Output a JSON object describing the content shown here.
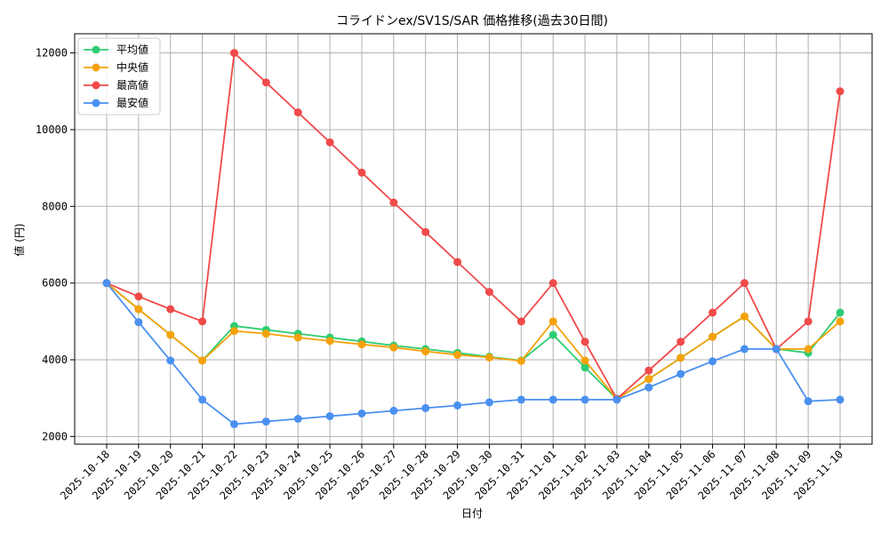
{
  "chart_data": {
    "type": "line",
    "title": "コライドンex/SV1S/SAR 価格推移(過去30日間)",
    "xlabel": "日付",
    "ylabel": "値 (円)",
    "ylim": [
      1800,
      12500
    ],
    "yticks": [
      2000,
      4000,
      6000,
      8000,
      10000,
      12000
    ],
    "grid": true,
    "legend_position": "top-left",
    "categories": [
      "2025-10-18",
      "2025-10-19",
      "2025-10-20",
      "2025-10-21",
      "2025-10-22",
      "2025-10-23",
      "2025-10-24",
      "2025-10-25",
      "2025-10-26",
      "2025-10-27",
      "2025-10-28",
      "2025-10-29",
      "2025-10-30",
      "2025-10-31",
      "2025-11-01",
      "2025-11-02",
      "2025-11-03",
      "2025-11-04",
      "2025-11-05",
      "2025-11-06",
      "2025-11-07",
      "2025-11-08",
      "2025-11-09",
      "2025-11-10"
    ],
    "series": [
      {
        "name": "平均値",
        "color": "#2ecc71",
        "values": [
          6000,
          5320,
          4650,
          3980,
          4880,
          4780,
          4680,
          4580,
          4480,
          4370,
          4280,
          4180,
          4080,
          3980,
          4650,
          3800,
          2980,
          3500,
          4050,
          4600,
          5130,
          4280,
          4180,
          5230
        ]
      },
      {
        "name": "中央値",
        "color": "#f5a20a",
        "values": [
          6000,
          5320,
          4650,
          3980,
          4750,
          4680,
          4580,
          4490,
          4400,
          4320,
          4220,
          4130,
          4060,
          3970,
          5000,
          3980,
          2980,
          3500,
          4050,
          4600,
          5130,
          4280,
          4280,
          5000
        ]
      },
      {
        "name": "最高値",
        "color": "#f04a4a",
        "values": [
          6000,
          5650,
          5320,
          5000,
          12000,
          11230,
          10450,
          9670,
          8880,
          8100,
          7330,
          6550,
          5770,
          5000,
          6000,
          4470,
          2980,
          3720,
          4470,
          5230,
          6000,
          4280,
          5000,
          11000
        ]
      },
      {
        "name": "最安値",
        "color": "#4a90f0",
        "values": [
          6000,
          4980,
          3980,
          2960,
          2320,
          2390,
          2460,
          2530,
          2600,
          2670,
          2740,
          2810,
          2890,
          2960,
          2960,
          2960,
          2960,
          3280,
          3630,
          3960,
          4280,
          4280,
          2920,
          2960
        ]
      }
    ]
  }
}
